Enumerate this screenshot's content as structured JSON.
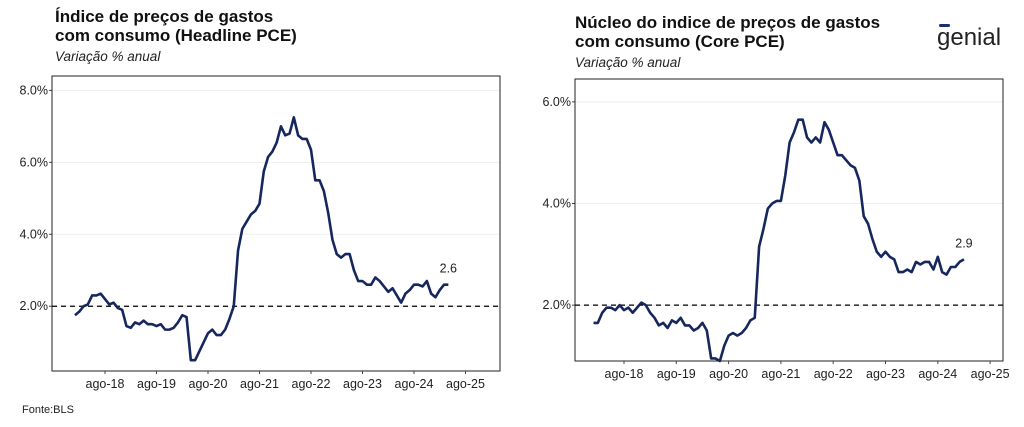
{
  "source": "Fonte:BLS",
  "logo_text": "genial",
  "colors": {
    "line": "#16275e",
    "grid": "#eeeeee",
    "ref": "#000000",
    "logo": "#1a2f6e"
  },
  "chart_data": [
    {
      "type": "line",
      "title_line1": "Índice de preços de gastos",
      "title_line2": "com consumo (Headline PCE)",
      "subtitle": "Variação % anual",
      "y_ticks": [
        "8.0%",
        "6.0%",
        "4.0%",
        "2.0%"
      ],
      "y_tick_values": [
        8,
        6,
        4,
        2
      ],
      "x_ticks": [
        "ago-18",
        "ago-19",
        "ago-20",
        "ago-21",
        "ago-22",
        "ago-23",
        "ago-24",
        "ago-25"
      ],
      "ylim": [
        0.2,
        8.4
      ],
      "reference_line": 2.0,
      "end_label": "2.6",
      "x_start": "2018-01",
      "series": [
        {
          "values": [
            1.75,
            1.85,
            2.0,
            2.05,
            2.3,
            2.3,
            2.35,
            2.2,
            2.05,
            2.1,
            1.95,
            1.9,
            1.45,
            1.4,
            1.55,
            1.5,
            1.6,
            1.5,
            1.5,
            1.45,
            1.5,
            1.35,
            1.35,
            1.4,
            1.55,
            1.75,
            1.7,
            0.5,
            0.5,
            0.75,
            1.0,
            1.25,
            1.35,
            1.2,
            1.2,
            1.35,
            1.65,
            2.0,
            3.55,
            4.15,
            4.35,
            4.55,
            4.65,
            4.85,
            5.75,
            6.15,
            6.3,
            6.55,
            7.0,
            6.75,
            6.8,
            7.25,
            6.75,
            6.65,
            6.65,
            6.35,
            5.5,
            5.5,
            5.2,
            4.6,
            3.85,
            3.45,
            3.35,
            3.45,
            3.45,
            3.0,
            2.7,
            2.7,
            2.6,
            2.6,
            2.8,
            2.7,
            2.55,
            2.4,
            2.5,
            2.3,
            2.1,
            2.35,
            2.45,
            2.6,
            2.6,
            2.55,
            2.7,
            2.35,
            2.25,
            2.45,
            2.6,
            2.6
          ]
        }
      ]
    },
    {
      "type": "line",
      "title_line1": "Núcleo do indice de preços de gastos",
      "title_line2": "com consumo (Core PCE)",
      "subtitle": "Variação % anual",
      "y_ticks": [
        "6.0%",
        "4.0%",
        "2.0%"
      ],
      "y_tick_values": [
        6,
        4,
        2
      ],
      "x_ticks": [
        "ago-18",
        "ago-19",
        "ago-20",
        "ago-21",
        "ago-22",
        "ago-23",
        "ago-24",
        "ago-25"
      ],
      "ylim": [
        0.9,
        6.45
      ],
      "reference_line": 2.0,
      "end_label": "2.9",
      "x_start": "2018-01",
      "series": [
        {
          "values": [
            1.65,
            1.65,
            1.85,
            1.95,
            1.95,
            1.9,
            2.0,
            1.9,
            1.95,
            1.85,
            1.95,
            2.05,
            2.0,
            1.85,
            1.75,
            1.6,
            1.65,
            1.55,
            1.7,
            1.65,
            1.75,
            1.6,
            1.6,
            1.5,
            1.55,
            1.65,
            1.5,
            0.95,
            0.95,
            0.9,
            1.2,
            1.4,
            1.45,
            1.4,
            1.45,
            1.55,
            1.7,
            1.75,
            3.15,
            3.5,
            3.9,
            4.0,
            4.05,
            4.05,
            4.55,
            5.2,
            5.4,
            5.65,
            5.65,
            5.3,
            5.2,
            5.3,
            5.2,
            5.6,
            5.45,
            5.2,
            4.95,
            4.95,
            4.85,
            4.75,
            4.7,
            4.45,
            3.75,
            3.6,
            3.3,
            3.05,
            2.95,
            3.05,
            2.95,
            2.9,
            2.65,
            2.65,
            2.7,
            2.65,
            2.85,
            2.8,
            2.85,
            2.85,
            2.7,
            2.95,
            2.65,
            2.6,
            2.75,
            2.75,
            2.85,
            2.9
          ]
        }
      ]
    }
  ]
}
